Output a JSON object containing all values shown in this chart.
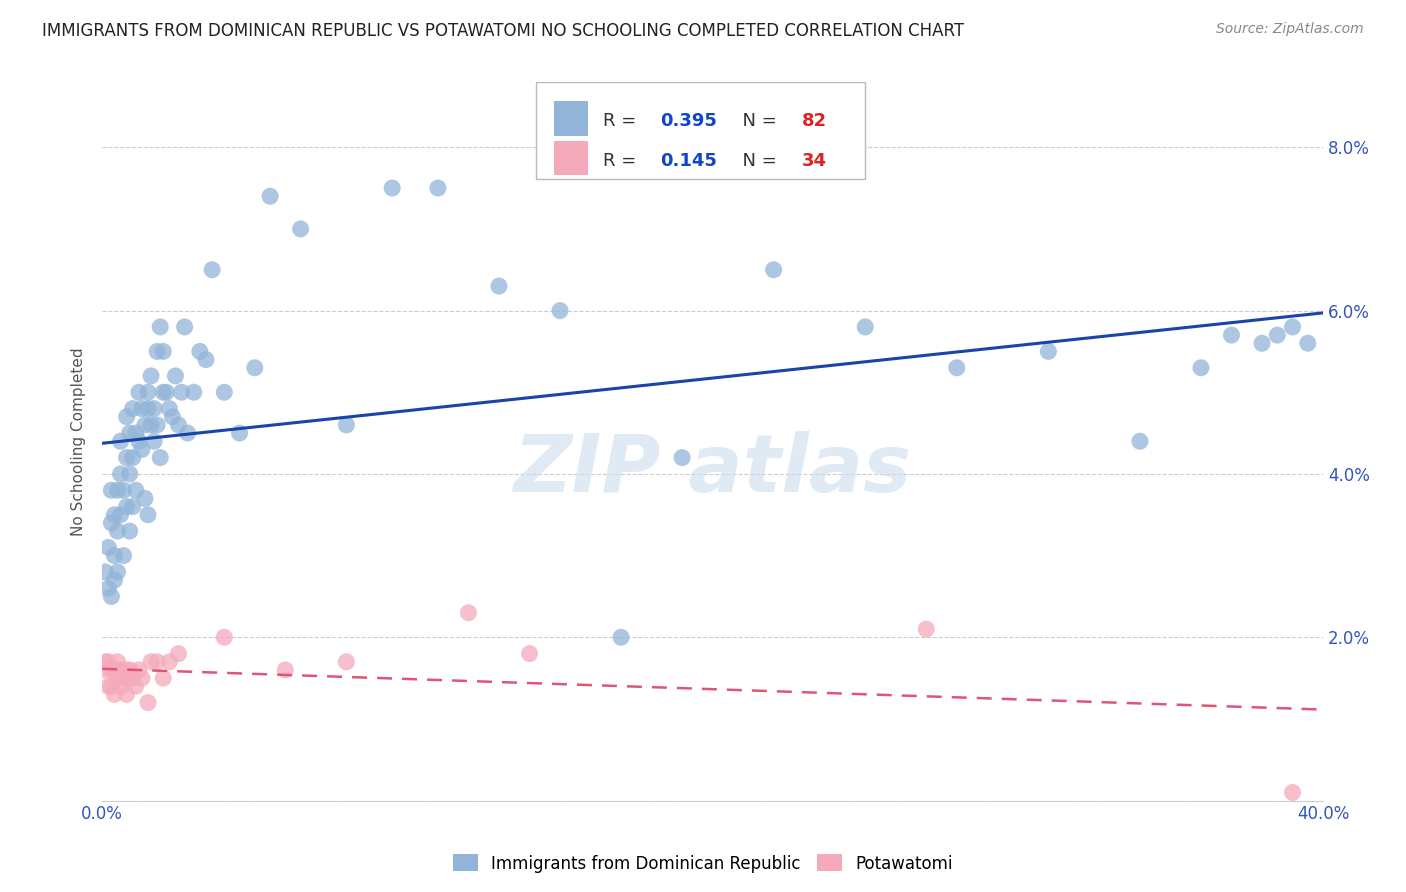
{
  "title": "IMMIGRANTS FROM DOMINICAN REPUBLIC VS POTAWATOMI NO SCHOOLING COMPLETED CORRELATION CHART",
  "source": "Source: ZipAtlas.com",
  "ylabel": "No Schooling Completed",
  "xlim": [
    0.0,
    0.4
  ],
  "ylim": [
    0.0,
    0.088
  ],
  "xticks": [
    0.0,
    0.05,
    0.1,
    0.15,
    0.2,
    0.25,
    0.3,
    0.35,
    0.4
  ],
  "xtick_labels": [
    "0.0%",
    "",
    "",
    "",
    "",
    "",
    "",
    "",
    "40.0%"
  ],
  "yticks": [
    0.0,
    0.02,
    0.04,
    0.06,
    0.08
  ],
  "ytick_labels": [
    "",
    "2.0%",
    "4.0%",
    "6.0%",
    "8.0%"
  ],
  "blue_r": 0.395,
  "blue_n": 82,
  "pink_r": 0.145,
  "pink_n": 34,
  "blue_color": "#92B4D8",
  "pink_color": "#F5AABB",
  "line_blue": "#1A44AA",
  "line_pink": "#E05575",
  "blue_scatter_x": [
    0.001,
    0.002,
    0.002,
    0.003,
    0.003,
    0.003,
    0.004,
    0.004,
    0.004,
    0.005,
    0.005,
    0.005,
    0.006,
    0.006,
    0.006,
    0.007,
    0.007,
    0.008,
    0.008,
    0.008,
    0.009,
    0.009,
    0.009,
    0.01,
    0.01,
    0.01,
    0.011,
    0.011,
    0.012,
    0.012,
    0.013,
    0.013,
    0.014,
    0.014,
    0.015,
    0.015,
    0.015,
    0.016,
    0.016,
    0.017,
    0.017,
    0.018,
    0.018,
    0.019,
    0.019,
    0.02,
    0.02,
    0.021,
    0.022,
    0.023,
    0.024,
    0.025,
    0.026,
    0.027,
    0.028,
    0.03,
    0.032,
    0.034,
    0.036,
    0.04,
    0.045,
    0.05,
    0.055,
    0.065,
    0.08,
    0.095,
    0.11,
    0.13,
    0.15,
    0.17,
    0.19,
    0.22,
    0.25,
    0.28,
    0.31,
    0.34,
    0.36,
    0.37,
    0.38,
    0.385,
    0.39,
    0.395
  ],
  "blue_scatter_y": [
    0.028,
    0.031,
    0.026,
    0.034,
    0.038,
    0.025,
    0.03,
    0.035,
    0.027,
    0.038,
    0.033,
    0.028,
    0.04,
    0.035,
    0.044,
    0.038,
    0.03,
    0.042,
    0.036,
    0.047,
    0.04,
    0.045,
    0.033,
    0.042,
    0.048,
    0.036,
    0.045,
    0.038,
    0.044,
    0.05,
    0.043,
    0.048,
    0.046,
    0.037,
    0.048,
    0.05,
    0.035,
    0.046,
    0.052,
    0.048,
    0.044,
    0.055,
    0.046,
    0.058,
    0.042,
    0.05,
    0.055,
    0.05,
    0.048,
    0.047,
    0.052,
    0.046,
    0.05,
    0.058,
    0.045,
    0.05,
    0.055,
    0.054,
    0.065,
    0.05,
    0.045,
    0.053,
    0.074,
    0.07,
    0.046,
    0.075,
    0.075,
    0.063,
    0.06,
    0.02,
    0.042,
    0.065,
    0.058,
    0.053,
    0.055,
    0.044,
    0.053,
    0.057,
    0.056,
    0.057,
    0.058,
    0.056
  ],
  "pink_scatter_x": [
    0.001,
    0.001,
    0.002,
    0.002,
    0.003,
    0.003,
    0.004,
    0.004,
    0.005,
    0.005,
    0.006,
    0.006,
    0.007,
    0.008,
    0.008,
    0.009,
    0.009,
    0.01,
    0.011,
    0.012,
    0.013,
    0.015,
    0.016,
    0.018,
    0.02,
    0.022,
    0.025,
    0.04,
    0.06,
    0.08,
    0.12,
    0.14,
    0.27,
    0.39
  ],
  "pink_scatter_y": [
    0.017,
    0.016,
    0.017,
    0.014,
    0.016,
    0.014,
    0.016,
    0.013,
    0.017,
    0.015,
    0.016,
    0.014,
    0.015,
    0.016,
    0.013,
    0.016,
    0.015,
    0.015,
    0.014,
    0.016,
    0.015,
    0.012,
    0.017,
    0.017,
    0.015,
    0.017,
    0.018,
    0.02,
    0.016,
    0.017,
    0.023,
    0.018,
    0.021,
    0.001
  ],
  "background_color": "#FFFFFF",
  "grid_color": "#CCCCCC",
  "tick_color_blue": "#3355BB",
  "legend_label_blue": "Immigrants from Dominican Republic",
  "legend_label_pink": "Potawatomi",
  "title_fontsize": 12,
  "source_fontsize": 10,
  "axis_fontsize": 11,
  "tick_fontsize": 12
}
